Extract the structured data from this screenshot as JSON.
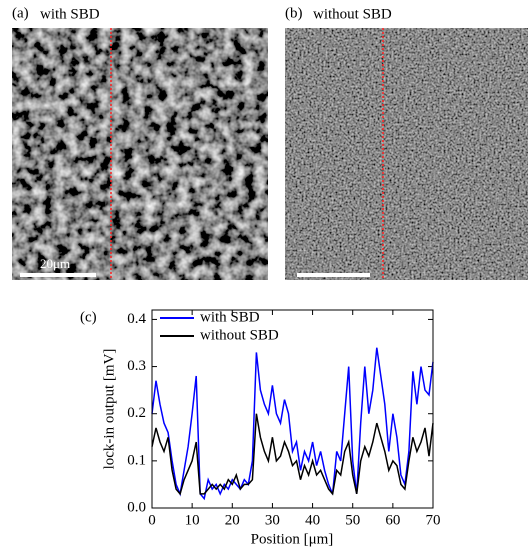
{
  "panels": [
    {
      "label": "(a)",
      "title": "with SBD",
      "scale_bar": "20μm"
    },
    {
      "label": "(b)",
      "title": "without SBD"
    }
  ],
  "chart_data": {
    "type": "line",
    "label": "(c)",
    "x_label": "Position [μm]",
    "y_label": "lock-in output [mV]",
    "xlim": [
      0,
      70
    ],
    "xticks": [
      0,
      10,
      20,
      30,
      40,
      50,
      60,
      70
    ],
    "ylim": [
      0,
      0.42
    ],
    "yticks": [
      {
        "value": 0,
        "label": "0.0"
      },
      0.1,
      0.2,
      0.3,
      0.4
    ],
    "legend": "upper left",
    "x": [
      0,
      1,
      2,
      3,
      4,
      5,
      6,
      7,
      8,
      9,
      10,
      11,
      12,
      13,
      14,
      15,
      16,
      17,
      18,
      19,
      20,
      21,
      22,
      23,
      24,
      25,
      26,
      27,
      28,
      29,
      30,
      31,
      32,
      33,
      34,
      35,
      36,
      37,
      38,
      39,
      40,
      41,
      42,
      43,
      44,
      45,
      46,
      47,
      48,
      49,
      50,
      51,
      52,
      53,
      54,
      55,
      56,
      57,
      58,
      59,
      60,
      61,
      62,
      63,
      64,
      65,
      66,
      67,
      68,
      69,
      70
    ],
    "series": [
      {
        "name": "with SBD",
        "color": "#0000ff",
        "values": [
          0.2,
          0.27,
          0.22,
          0.18,
          0.16,
          0.1,
          0.05,
          0.03,
          0.08,
          0.13,
          0.2,
          0.28,
          0.03,
          0.02,
          0.06,
          0.04,
          0.05,
          0.03,
          0.05,
          0.04,
          0.06,
          0.05,
          0.04,
          0.06,
          0.05,
          0.1,
          0.33,
          0.25,
          0.22,
          0.2,
          0.26,
          0.2,
          0.18,
          0.23,
          0.2,
          0.12,
          0.14,
          0.08,
          0.12,
          0.1,
          0.14,
          0.09,
          0.12,
          0.08,
          0.05,
          0.03,
          0.12,
          0.1,
          0.2,
          0.3,
          0.1,
          0.03,
          0.18,
          0.3,
          0.2,
          0.25,
          0.34,
          0.28,
          0.22,
          0.12,
          0.2,
          0.15,
          0.07,
          0.05,
          0.12,
          0.29,
          0.22,
          0.3,
          0.25,
          0.24,
          0.31
        ]
      },
      {
        "name": "without SBD",
        "color": "#000000",
        "values": [
          0.13,
          0.17,
          0.14,
          0.12,
          0.15,
          0.08,
          0.04,
          0.03,
          0.06,
          0.08,
          0.1,
          0.14,
          0.03,
          0.03,
          0.04,
          0.05,
          0.04,
          0.05,
          0.04,
          0.06,
          0.05,
          0.07,
          0.04,
          0.05,
          0.05,
          0.06,
          0.2,
          0.15,
          0.12,
          0.1,
          0.15,
          0.1,
          0.11,
          0.14,
          0.12,
          0.09,
          0.1,
          0.06,
          0.09,
          0.07,
          0.1,
          0.07,
          0.08,
          0.06,
          0.04,
          0.03,
          0.08,
          0.07,
          0.12,
          0.14,
          0.07,
          0.03,
          0.1,
          0.13,
          0.11,
          0.14,
          0.18,
          0.15,
          0.12,
          0.08,
          0.1,
          0.09,
          0.05,
          0.04,
          0.1,
          0.15,
          0.12,
          0.14,
          0.17,
          0.11,
          0.18
        ]
      }
    ]
  }
}
